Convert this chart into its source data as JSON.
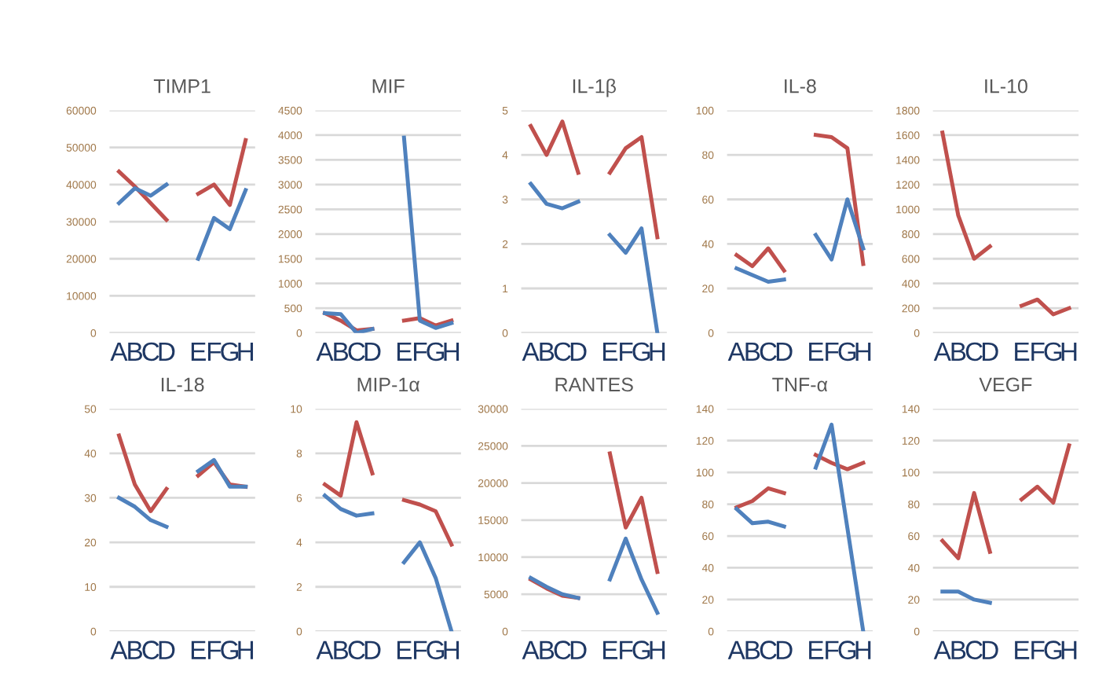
{
  "chart_data": [
    {
      "type": "line",
      "title": "TIMP1",
      "categories": [
        "A",
        "B",
        "C",
        "D",
        null,
        "E",
        "F",
        "G",
        "H"
      ],
      "ylim": [
        0,
        60000
      ],
      "yticks": [
        0,
        10000,
        20000,
        30000,
        40000,
        50000,
        60000
      ],
      "grid": "y",
      "series": [
        {
          "color": "#c0504d",
          "values": [
            43500,
            39500,
            35000,
            30500,
            null,
            37500,
            40000,
            34500,
            52000
          ]
        },
        {
          "color": "#4f81bd",
          "values": [
            35000,
            39000,
            37000,
            40000,
            null,
            20000,
            31000,
            28000,
            38500
          ]
        }
      ]
    },
    {
      "type": "line",
      "title": "MIF",
      "categories": [
        "A",
        "B",
        "C",
        "D",
        null,
        "E",
        "F",
        "G",
        "H"
      ],
      "ylim": [
        0,
        4500
      ],
      "yticks": [
        0,
        500,
        1000,
        1500,
        2000,
        2500,
        3000,
        3500,
        4000,
        4500
      ],
      "grid": "y",
      "series": [
        {
          "color": "#c0504d",
          "values": [
            400,
            250,
            50,
            80,
            null,
            250,
            300,
            150,
            250
          ]
        },
        {
          "color": "#4f81bd",
          "values": [
            400,
            380,
            0,
            80,
            null,
            3950,
            250,
            100,
            200
          ]
        }
      ]
    },
    {
      "type": "line",
      "title": "IL-1β",
      "categories": [
        "A",
        "B",
        "C",
        "D",
        null,
        "E",
        "F",
        "G",
        "H"
      ],
      "ylim": [
        0,
        5
      ],
      "yticks": [
        0,
        1,
        2,
        3,
        4,
        5
      ],
      "grid": "y",
      "series": [
        {
          "color": "#c0504d",
          "values": [
            4.65,
            4.0,
            4.75,
            3.6,
            null,
            3.6,
            4.15,
            4.4,
            2.15
          ]
        },
        {
          "color": "#4f81bd",
          "values": [
            3.35,
            2.9,
            2.8,
            2.95,
            null,
            2.2,
            1.8,
            2.35,
            0
          ]
        }
      ]
    },
    {
      "type": "line",
      "title": "IL-8",
      "categories": [
        "A",
        "B",
        "C",
        "D",
        null,
        "E",
        "F",
        "G",
        "H"
      ],
      "ylim": [
        0,
        100
      ],
      "yticks": [
        0,
        20,
        40,
        60,
        80,
        100
      ],
      "grid": "y",
      "series": [
        {
          "color": "#c0504d",
          "values": [
            35,
            30,
            38,
            28,
            null,
            89,
            88,
            83,
            31
          ]
        },
        {
          "color": "#4f81bd",
          "values": [
            29,
            26,
            23,
            24,
            null,
            44,
            33,
            60,
            38
          ]
        }
      ]
    },
    {
      "type": "line",
      "title": "IL-10",
      "categories": [
        "A",
        "B",
        "C",
        "D",
        null,
        "E",
        "F",
        "G",
        "H"
      ],
      "ylim": [
        0,
        1800
      ],
      "yticks": [
        0,
        200,
        400,
        600,
        800,
        1000,
        1200,
        1400,
        1600,
        1800
      ],
      "grid": "y",
      "series": [
        {
          "color": "#c0504d",
          "values": [
            1620,
            950,
            600,
            700,
            null,
            220,
            270,
            150,
            200
          ]
        }
      ]
    },
    {
      "type": "line",
      "title": "IL-18",
      "categories": [
        "A",
        "B",
        "C",
        "D",
        null,
        "E",
        "F",
        "G",
        "H"
      ],
      "ylim": [
        0,
        50
      ],
      "yticks": [
        0,
        10,
        20,
        30,
        40,
        50
      ],
      "grid": "y",
      "series": [
        {
          "color": "#c0504d",
          "values": [
            44,
            33,
            27,
            32,
            null,
            35,
            38,
            33,
            32.5
          ]
        },
        {
          "color": "#4f81bd",
          "values": [
            30,
            28,
            25,
            23.5,
            null,
            36,
            38.5,
            32.5,
            32.5
          ]
        }
      ]
    },
    {
      "type": "line",
      "title": "MIP-1α",
      "categories": [
        "A",
        "B",
        "C",
        "D",
        null,
        "E",
        "F",
        "G",
        "H"
      ],
      "ylim": [
        0,
        10
      ],
      "yticks": [
        0,
        2,
        4,
        6,
        8,
        10
      ],
      "grid": "y",
      "series": [
        {
          "color": "#c0504d",
          "values": [
            6.6,
            6.1,
            9.4,
            7.1,
            null,
            5.9,
            5.7,
            5.4,
            3.9
          ]
        },
        {
          "color": "#4f81bd",
          "values": [
            6.1,
            5.5,
            5.2,
            5.3,
            null,
            3.1,
            4.0,
            2.4,
            0
          ]
        }
      ]
    },
    {
      "type": "line",
      "title": "RANTES",
      "categories": [
        "A",
        "B",
        "C",
        "D",
        null,
        "E",
        "F",
        "G",
        "H"
      ],
      "ylim": [
        0,
        30000
      ],
      "yticks": [
        0,
        5000,
        10000,
        15000,
        20000,
        25000,
        30000
      ],
      "grid": "y",
      "series": [
        {
          "color": "#c0504d",
          "values": [
            7000,
            5800,
            4800,
            4500,
            null,
            24000,
            14000,
            18000,
            8000
          ]
        },
        {
          "color": "#4f81bd",
          "values": [
            7200,
            6000,
            5000,
            4500,
            null,
            7000,
            12500,
            7000,
            2500
          ]
        }
      ]
    },
    {
      "type": "line",
      "title": "TNF-α",
      "categories": [
        "A",
        "B",
        "C",
        "D",
        null,
        "E",
        "F",
        "G",
        "H"
      ],
      "ylim": [
        0,
        140
      ],
      "yticks": [
        0,
        20,
        40,
        60,
        80,
        100,
        120,
        140
      ],
      "grid": "y",
      "series": [
        {
          "color": "#c0504d",
          "values": [
            78,
            82,
            90,
            87,
            null,
            111,
            106,
            102,
            106
          ]
        },
        {
          "color": "#4f81bd",
          "values": [
            77,
            68,
            69,
            66,
            null,
            103,
            130,
            65,
            0
          ]
        }
      ]
    },
    {
      "type": "line",
      "title": "VEGF",
      "categories": [
        "A",
        "B",
        "C",
        "D",
        null,
        "E",
        "F",
        "G",
        "H"
      ],
      "ylim": [
        0,
        140
      ],
      "yticks": [
        0,
        20,
        40,
        60,
        80,
        100,
        120,
        140
      ],
      "grid": "y",
      "series": [
        {
          "color": "#c0504d",
          "values": [
            57,
            46,
            87,
            50,
            null,
            83,
            91,
            81,
            117
          ]
        },
        {
          "color": "#4f81bd",
          "values": [
            25,
            25,
            20,
            18,
            null,
            null,
            null,
            null,
            null
          ]
        }
      ]
    }
  ]
}
